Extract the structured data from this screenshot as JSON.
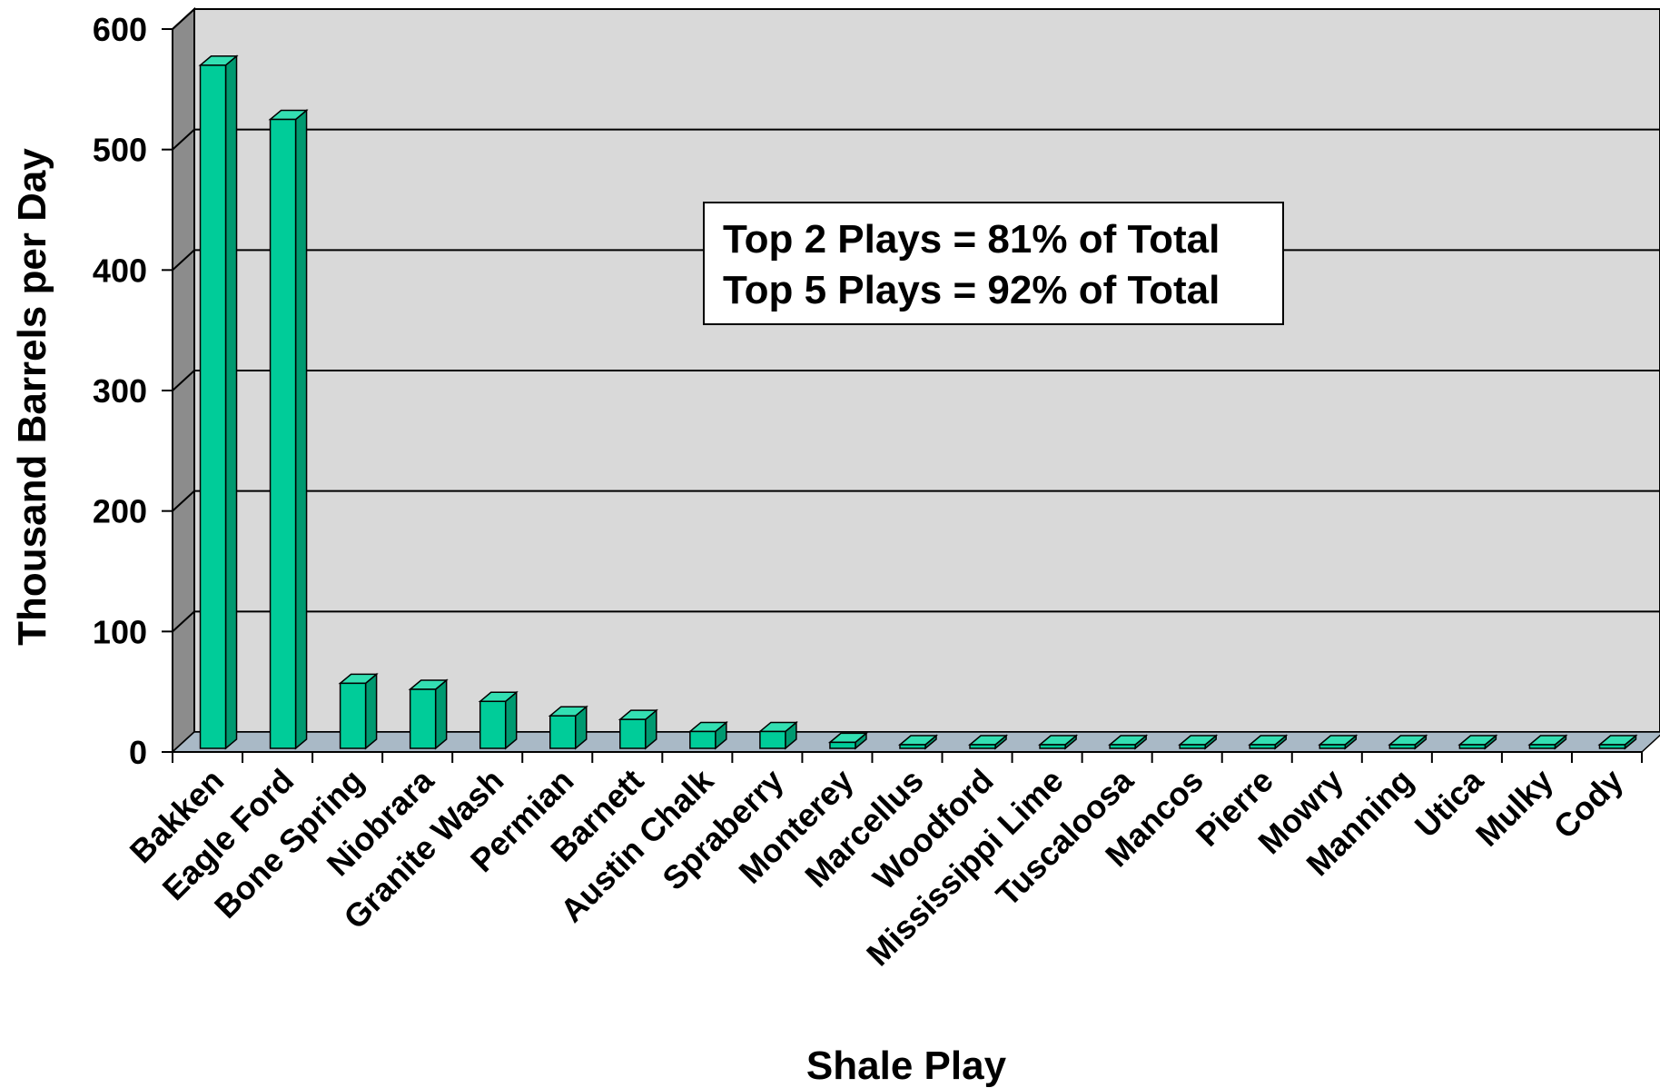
{
  "chart_data": {
    "type": "bar",
    "style": "3d-column",
    "xlabel": "Shale Play",
    "ylabel": "Thousand Barrels per Day",
    "ylim": [
      0,
      600
    ],
    "yticks": [
      0,
      100,
      200,
      300,
      400,
      500,
      600
    ],
    "grid": true,
    "legend": "none",
    "categories": [
      "Bakken",
      "Eagle Ford",
      "Bone Spring",
      "Niobrara",
      "Granite Wash",
      "Permian",
      "Barnett",
      "Austin Chalk",
      "Spraberry",
      "Monterey",
      "Marcellus",
      "Woodford",
      "Mississippi Lime",
      "Tuscaloosa",
      "Mancos",
      "Pierre",
      "Mowry",
      "Manning",
      "Utica",
      "Mulky",
      "Cody"
    ],
    "values": [
      570,
      525,
      57,
      52,
      42,
      30,
      27,
      17,
      17,
      8,
      5,
      3,
      2,
      1,
      1,
      1,
      1,
      1,
      1,
      1,
      1
    ],
    "annotations": [
      "Top 2 Plays = 81% of Total",
      "Top 5 Plays = 92% of Total"
    ],
    "colors": {
      "bar_front": "#00cc99",
      "bar_side": "#009970",
      "bar_top": "#33dfb2",
      "back_wall": "#d9d9d9",
      "side_wall": "#8c8c8c",
      "floor": "#a9b9c6",
      "gridline": "#000000"
    }
  }
}
